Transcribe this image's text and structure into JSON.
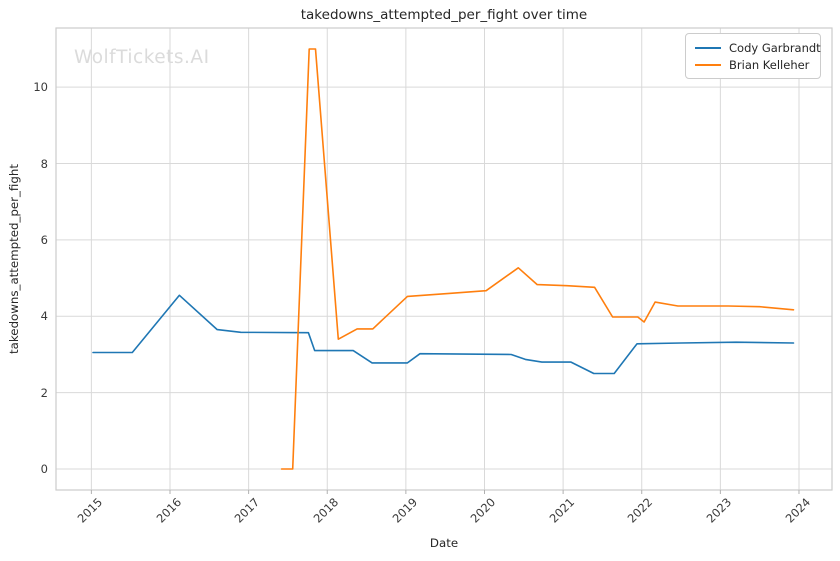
{
  "watermark": "WolfTickets.AI",
  "chart_data": {
    "type": "line",
    "title": "takedowns_attempted_per_fight over time",
    "xlabel": "Date",
    "ylabel": "takedowns_attempted_per_fight",
    "x_ticks": [
      2015,
      2016,
      2017,
      2018,
      2019,
      2020,
      2021,
      2022,
      2023,
      2024
    ],
    "y_ticks": [
      0,
      2,
      4,
      6,
      8,
      10
    ],
    "xlim": [
      2014.55,
      2024.42
    ],
    "ylim": [
      -0.55,
      11.55
    ],
    "grid": true,
    "legend_position": "upper right",
    "colors": {
      "grid": "#d9d9d9",
      "spine": "#cccccc",
      "tick_mark": "#b0b0b0",
      "text": "#262626",
      "watermark": "#dbdbdb"
    },
    "series": [
      {
        "name": "Cody Garbrandt",
        "color": "#1f77b4",
        "points": [
          [
            2015.02,
            3.05
          ],
          [
            2015.52,
            3.05
          ],
          [
            2016.12,
            4.55
          ],
          [
            2016.6,
            3.65
          ],
          [
            2016.9,
            3.58
          ],
          [
            2017.76,
            3.57
          ],
          [
            2017.84,
            3.1
          ],
          [
            2018.33,
            3.1
          ],
          [
            2018.57,
            2.78
          ],
          [
            2019.02,
            2.78
          ],
          [
            2019.18,
            3.02
          ],
          [
            2020.34,
            3.0
          ],
          [
            2020.52,
            2.87
          ],
          [
            2020.73,
            2.8
          ],
          [
            2021.1,
            2.8
          ],
          [
            2021.39,
            2.5
          ],
          [
            2021.65,
            2.5
          ],
          [
            2021.94,
            3.28
          ],
          [
            2022.5,
            3.3
          ],
          [
            2023.2,
            3.32
          ],
          [
            2023.93,
            3.3
          ]
        ]
      },
      {
        "name": "Brian Kelleher",
        "color": "#ff7f0e",
        "points": [
          [
            2017.42,
            0.0
          ],
          [
            2017.56,
            0.0
          ],
          [
            2017.77,
            11.0
          ],
          [
            2017.85,
            11.0
          ],
          [
            2018.14,
            3.4
          ],
          [
            2018.38,
            3.67
          ],
          [
            2018.58,
            3.67
          ],
          [
            2019.02,
            4.52
          ],
          [
            2019.55,
            4.6
          ],
          [
            2020.02,
            4.67
          ],
          [
            2020.43,
            5.27
          ],
          [
            2020.67,
            4.83
          ],
          [
            2021.05,
            4.8
          ],
          [
            2021.4,
            4.76
          ],
          [
            2021.63,
            3.98
          ],
          [
            2021.95,
            3.98
          ],
          [
            2022.03,
            3.85
          ],
          [
            2022.17,
            4.37
          ],
          [
            2022.46,
            4.27
          ],
          [
            2023.1,
            4.27
          ],
          [
            2023.5,
            4.25
          ],
          [
            2023.93,
            4.17
          ]
        ]
      }
    ]
  }
}
